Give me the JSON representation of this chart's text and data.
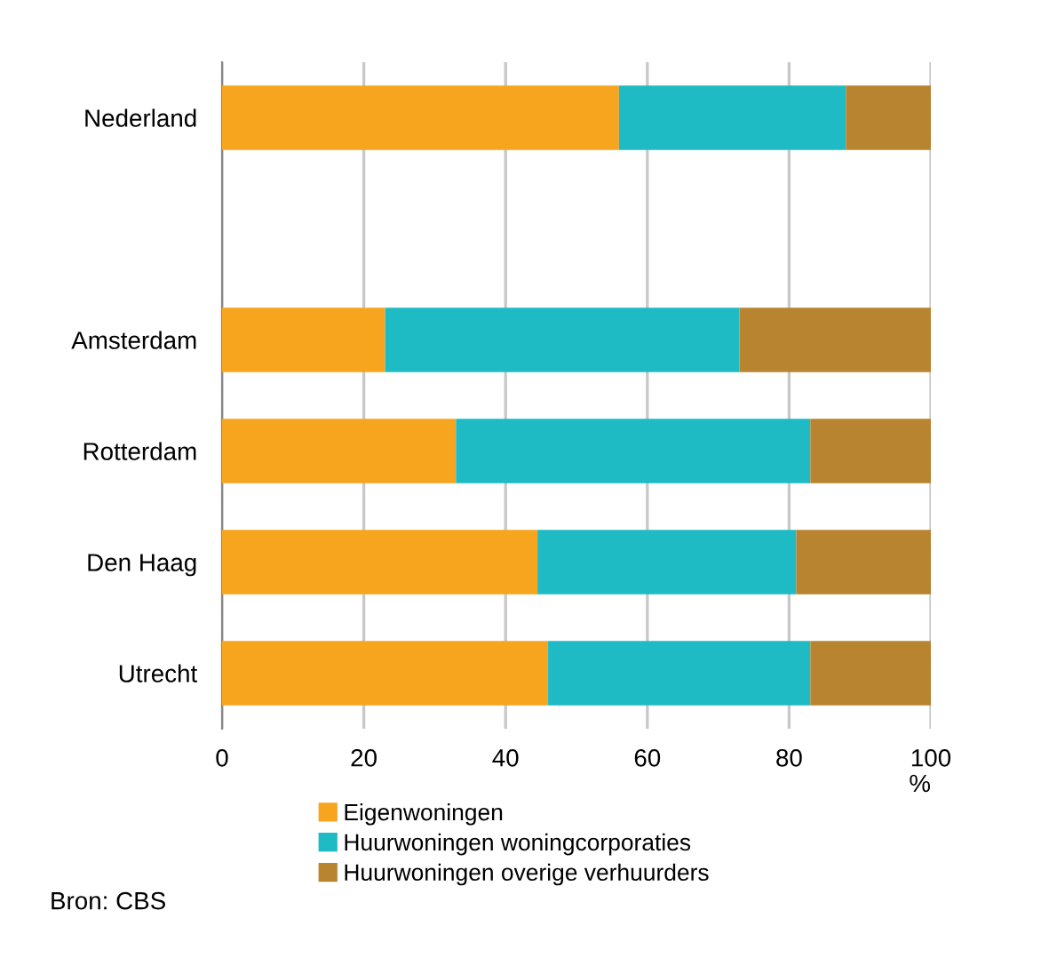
{
  "chart_data": {
    "type": "bar",
    "orientation": "horizontal",
    "stacked": true,
    "categories": [
      "Nederland",
      null,
      "Amsterdam",
      "Rotterdam",
      "Den Haag",
      "Utrecht"
    ],
    "series": [
      {
        "name": "Eigenwoningen",
        "color": "#f7a51f",
        "values": [
          56,
          null,
          23,
          33,
          44.5,
          46
        ]
      },
      {
        "name": "Huurwoningen woningcorporaties",
        "color": "#1fbbc4",
        "values": [
          32,
          null,
          50,
          50,
          36.5,
          37
        ]
      },
      {
        "name": "Huurwoningen overige verhuurders",
        "color": "#b98430",
        "values": [
          12,
          null,
          27,
          17,
          19,
          17
        ]
      }
    ],
    "xlim": [
      0,
      100
    ],
    "xticks": [
      0,
      20,
      40,
      60,
      80,
      100
    ],
    "xlabel": "%",
    "grid": "x",
    "legend": "bottom",
    "annotations": [
      "Bron: CBS"
    ]
  }
}
